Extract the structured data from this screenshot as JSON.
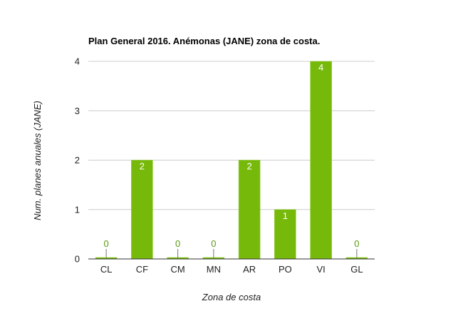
{
  "chart_data": {
    "type": "bar",
    "title": "Plan General 2016. Anémonas (JANE) zona de costa.",
    "xlabel": "Zona de costa",
    "ylabel": "Num. planes anuales (JANE)",
    "categories": [
      "CL",
      "CF",
      "CM",
      "MN",
      "AR",
      "PO",
      "VI",
      "GL"
    ],
    "series": [
      {
        "values": [
          0,
          2,
          0,
          0,
          2,
          1,
          4,
          0
        ]
      }
    ],
    "data_labels": [
      "0",
      "2",
      "0",
      "0",
      "2",
      "1",
      "4",
      "0"
    ],
    "ylim": [
      0,
      4
    ],
    "yticks": [
      "0",
      "1",
      "2",
      "3",
      "4"
    ],
    "grid": true,
    "legend": "none",
    "colors": {
      "bar": "#77b90b",
      "bar_stroke": "#8fcf2a",
      "grid": "#cccccc",
      "axis": "#333333",
      "label_outside": "#5a9a10",
      "label_inside": "#ffffff"
    }
  }
}
